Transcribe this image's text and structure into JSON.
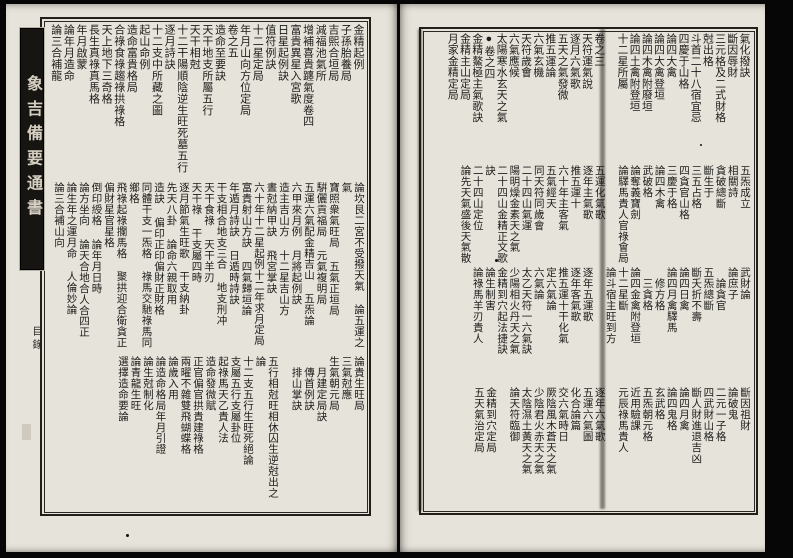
{
  "book": {
    "spine_title": "象吉備要通書",
    "section_label": "目錄"
  },
  "colors": {
    "paper": "#e6e3da",
    "ink": "#1d1c1a",
    "background": "#060606"
  },
  "pages": [
    {
      "side": "left",
      "registers": [
        {
          "columns": [
            {
              "e": [
                "金精起例"
              ]
            },
            {
              "e": [
                "子孫胎養局"
              ]
            },
            {
              "e": [
                "吉熙合垣局"
              ]
            },
            {
              "e": [
                "減福池氣所"
              ]
            },
            {
              "e": [
                "增補喜貴躔氣度卷四"
              ]
            },
            {
              "e": [
                "富貴異星入宮歌"
              ]
            },
            {
              "e": [
                "日星起例訣"
              ]
            },
            {
              "e": [
                "值符例訣"
              ]
            },
            {
              "e": [
                "十二星定局"
              ]
            },
            {
              "e": [
                "年月山向方位定局"
              ]
            },
            {
              "e": [
                "卷之五"
              ]
            },
            {
              "e": [
                "造命至要訣"
              ]
            },
            {
              "e": [
                "天干地支所屬五行"
              ]
            },
            {
              "e": [
                "天干相尅"
              ]
            },
            {
              "e": [
                "十二干陽順陰逆生旺死墓五行逐月詩訣"
              ]
            },
            {
              "e": [
                "十二支中所藏之圖"
              ]
            },
            {
              "e": [
                "起山命例"
              ]
            },
            {
              "e": [
                "造命富貴格局"
              ]
            },
            {
              "e": [
                "合祿食祿趨祿拱祿格"
              ]
            },
            {
              "e": [
                "天上地下三奇格"
              ]
            },
            {
              "e": [
                "長生真祿真馬格"
              ]
            },
            {
              "e": [
                "年月啟蒙"
              ]
            },
            {
              "e": [
                "論年月造命"
              ]
            },
            {
              "e": [
                "論三合補龍"
              ]
            }
          ]
        },
        {
          "columns": [
            {
              "e": [
                "論坎艮二宮不受撥天氣",
                "論五運之氣"
              ]
            },
            {
              "e": [
                "寶照衆氣旺局",
                "五氣正垣局"
              ]
            },
            {
              "e": [
                "騈儷貢福局",
                "元氣複明局"
              ]
            },
            {
              "e": [
                "五運六氣配金精吉山",
                "五炁論"
              ]
            },
            {
              "e": [
                "六甲來月例",
                "月將起例訣"
              ]
            },
            {
              "e": [
                "造主吉山方",
                "十二星吉山方"
              ]
            },
            {
              "e": [
                "晝尅納甲訣",
                "飛宮掌訣"
              ]
            },
            {
              "e": [
                "六十年十二星起例十二年求月定局"
              ]
            },
            {
              "e": [
                "富貴射山方訣",
                "四氣歸垣論"
              ]
            },
            {
              "e": [
                "年遁月詩訣",
                "日遁時詩訣"
              ]
            },
            {
              "e": [
                "干支相合地支三合",
                "地支刑冲"
              ]
            },
            {
              "e": [
                "天干食祿",
                "天干羊刃"
              ]
            },
            {
              "e": [
                "天干祿",
                "干支屬四時"
              ]
            },
            {
              "e": [
                "逐月節氣生旺歌",
                "干支納卦"
              ]
            },
            {
              "e": [
                "先天八卦",
                "論命六親取用"
              ]
            },
            {
              "e": [
                "造訣",
                "偏印正印偏財正財格"
              ]
            },
            {
              "e": [
                "同體干支一炁格",
                "祿馬交馳祿馬同鄉格"
              ]
            },
            {
              "e": [
                "飛祿起祿攔馬格",
                "聚拱迎合衛貪正偏財星官星格"
              ]
            },
            {
              "e": [
                "倒印綬格",
                "論年月日時"
              ]
            },
            {
              "e": [
                "論方坐向",
                "論天合地合人合四正"
              ]
            },
            {
              "e": [
                "論生年之運月命",
                "人倫妙論"
              ]
            },
            {
              "e": [
                "論三合補山向"
              ]
            }
          ]
        },
        {
          "columns": [
            {
              "e": [
                "論貴生旺局"
              ]
            },
            {
              "e": [
                "三氣尅應"
              ]
            },
            {
              "e": [
                "生氣朝元局"
              ]
            },
            {
              "e": [
                "月建定局訣"
              ],
              "p": 1
            },
            {
              "e": [
                "傳首例訣"
              ],
              "p": 1
            },
            {
              "e": [
                "排山掌訣"
              ],
              "p": 1
            },
            {
              "sp": true
            },
            {
              "e": [
                "五行相尅旺相休囚生逆尅出之論"
              ]
            },
            {
              "e": [
                "十二支五行生旺死絕論"
              ]
            },
            {
              "e": [
                "支屬五行支屬卦位"
              ]
            },
            {
              "e": [
                "起祿馬天乙貴人法"
              ]
            },
            {
              "e": [
                "造命發微賦"
              ]
            },
            {
              "e": [
                "正官偏官拱貴建祿格"
              ]
            },
            {
              "e": [
                "兩曜不雜雙飛蝴蝶格"
              ]
            },
            {
              "e": [
                "論歲入用"
              ]
            },
            {
              "e": [
                "論造命格局年月引證"
              ]
            },
            {
              "e": [
                "論生尅制化"
              ]
            },
            {
              "e": [
                "論青龍生旺"
              ]
            },
            {
              "e": [
                "選擇造命要論"
              ]
            }
          ]
        }
      ]
    },
    {
      "side": "right",
      "registers": [
        {
          "columns": [
            {
              "e": [
                "氣化撥訣"
              ]
            },
            {
              "e": [
                "斷因辱財"
              ]
            },
            {
              "e": [
                "三元格及二式財格"
              ]
            },
            {
              "e": [
                "尅出格"
              ]
            },
            {
              "e": [
                "斗首二十八宿宜忌"
              ]
            },
            {
              "e": [
                "四慶于山格"
              ]
            },
            {
              "e": [
                "論四大禽"
              ]
            },
            {
              "e": [
                "論四大禽登垣"
              ]
            },
            {
              "e": [
                "論四木禽附廢垣"
              ]
            },
            {
              "e": [
                "論四土禽附登垣"
              ]
            },
            {
              "e": [
                "十二星所屬"
              ]
            },
            {
              "sp": true
            },
            {
              "e": [
                "卷之三"
              ]
            },
            {
              "e": [
                "天符運氣說"
              ]
            },
            {
              "e": [
                "逐月六氣歌"
              ]
            },
            {
              "e": [
                "五天之氣發微"
              ]
            },
            {
              "e": [
                "推五運論"
              ]
            },
            {
              "e": [
                "六氣玄機"
              ]
            },
            {
              "e": [
                "天符歲會"
              ]
            },
            {
              "e": [
                "六氣應候"
              ]
            },
            {
              "e": [
                "太陽寒水玄天之氣"
              ]
            },
            {
              "e": [
                "●卷之四"
              ]
            },
            {
              "e": [
                "金精鰲極主氣歌訣"
              ]
            },
            {
              "e": [
                "金精主山定局"
              ]
            },
            {
              "e": [
                "月家金精定局"
              ]
            }
          ]
        },
        {
          "columns": [
            {
              "e": [
                "五炁成立"
              ]
            },
            {
              "e": [
                "相關詩"
              ]
            },
            {
              "e": [
                "貪破總斷"
              ]
            },
            {
              "e": [
                "斷生于"
              ]
            },
            {
              "e": [
                "三五占格"
              ]
            },
            {
              "e": [
                "四貪官山格"
              ]
            },
            {
              "e": [
                "三慶于格"
              ]
            },
            {
              "e": [
                "論四木禽"
              ]
            },
            {
              "e": [
                "武破格"
              ]
            },
            {
              "e": [
                "論奪義寶劍"
              ]
            },
            {
              "e": [
                "論驛馬貴人官祿會局"
              ]
            },
            {
              "sp": true
            },
            {
              "e": [
                "五運化氣歌"
              ]
            },
            {
              "e": [
                "逐年主氣歌"
              ]
            },
            {
              "e": [
                "推五運十"
              ]
            },
            {
              "e": [
                "六十年主客氣"
              ]
            },
            {
              "e": [
                "五氣經天"
              ]
            },
            {
              "e": [
                "同天符同歲會"
              ]
            },
            {
              "e": [
                "二十四山氣運"
              ]
            },
            {
              "e": [
                "陽明燥金素天之氣"
              ]
            },
            {
              "e": [
                "二十四山金精正文歌訣"
              ]
            },
            {
              "e": [
                "二十四山定位"
              ]
            },
            {
              "e": [
                "論先天氣盛後天氣散"
              ]
            }
          ]
        },
        {
          "columns": [
            {
              "e": [
                "武財論"
              ]
            },
            {
              "e": [
                "論庶子"
              ]
            },
            {
              "e": [
                "論貪官"
              ],
              "p": 1
            },
            {
              "e": [
                "五炁總斷"
              ]
            },
            {
              "e": [
                "斷夭折不壽"
              ]
            },
            {
              "e": [
                "論四日禽"
              ]
            },
            {
              "e": [
                "論四月禽驛馬"
              ]
            },
            {
              "e": [
                "修方格"
              ],
              "p": 1
            },
            {
              "e": [
                "三貪格"
              ],
              "p": 1
            },
            {
              "e": [
                "論四金禽附登垣"
              ]
            },
            {
              "e": [
                "十二星斷"
              ]
            },
            {
              "e": [
                "論斗宿主旺到方"
              ]
            },
            {
              "sp": true
            },
            {
              "e": [
                "逐年五運歌"
              ]
            },
            {
              "e": [
                "逐年客氣歌"
              ]
            },
            {
              "e": [
                "推五運十干化氣"
              ]
            },
            {
              "e": [
                "定六氣論"
              ]
            },
            {
              "e": [
                "六氣論"
              ]
            },
            {
              "e": [
                "太乙天符一六氣訣"
              ]
            },
            {
              "e": [
                "少陽相火丹天之氣"
              ]
            },
            {
              "e": [
                "金精到穴起法捷訣"
              ]
            },
            {
              "e": [
                "論生制害"
              ]
            },
            {
              "e": [
                "論祿馬羊刃貴人"
              ]
            }
          ]
        },
        {
          "columns": [
            {
              "e": [
                "斷因祖財"
              ]
            },
            {
              "e": [
                "論破鬼"
              ]
            },
            {
              "e": [
                "二元一子格"
              ]
            },
            {
              "e": [
                "四武財山格"
              ]
            },
            {
              "e": [
                "斷人財進退吉凶"
              ]
            },
            {
              "e": [
                "論四月禽"
              ]
            },
            {
              "e": [
                "論四鬼格"
              ]
            },
            {
              "e": [
                "玄武格"
              ]
            },
            {
              "e": [
                "五炁朝元格"
              ]
            },
            {
              "e": [
                "近用驗課"
              ]
            },
            {
              "e": [
                "元辰祿馬貴人"
              ]
            },
            {
              "sp": true
            },
            {
              "e": [
                "逐年六氣歌"
              ]
            },
            {
              "e": [
                "五運六氣圖"
              ]
            },
            {
              "e": [
                "化合論篇"
              ]
            },
            {
              "e": [
                "交六氣時日"
              ]
            },
            {
              "e": [
                "厥陰風木蒼天之氣"
              ]
            },
            {
              "e": [
                "少陰君火赤天之氣"
              ]
            },
            {
              "e": [
                "太陰濕土黃天之氣"
              ]
            },
            {
              "e": [
                "論天符臨御"
              ]
            },
            {
              "sp": true
            },
            {
              "e": [
                "金精到穴定局"
              ]
            },
            {
              "e": [
                "五天氣治定局"
              ]
            }
          ]
        }
      ]
    }
  ]
}
